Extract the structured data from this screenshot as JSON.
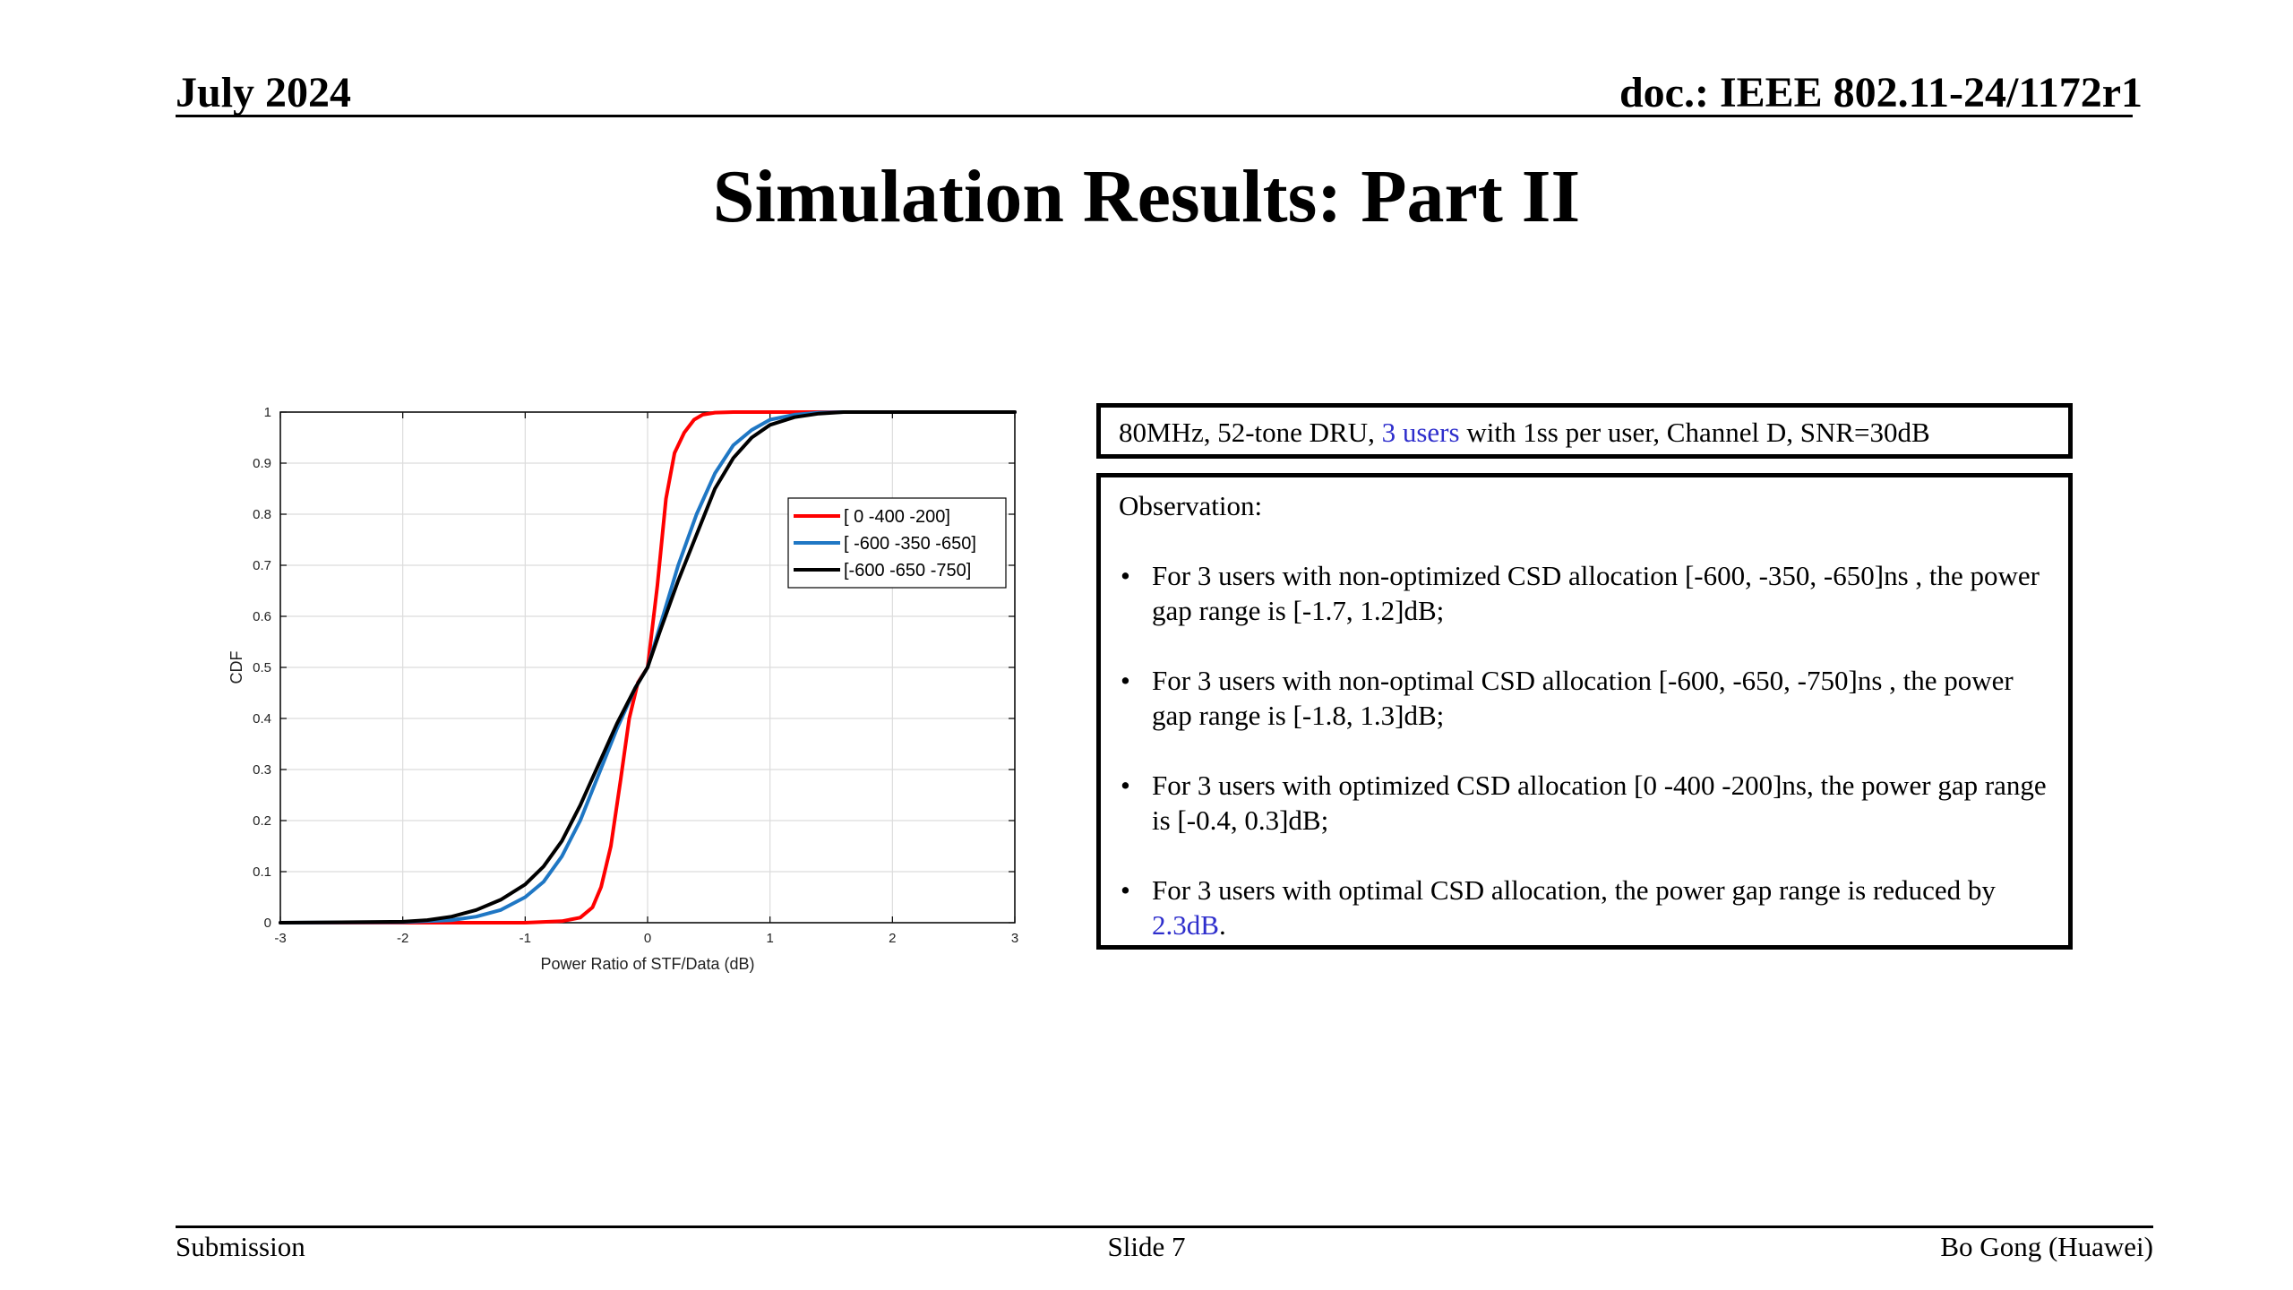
{
  "header": {
    "date": "July 2024",
    "doc": "doc.: IEEE 802.11-24/1172r1"
  },
  "slide_title": "Simulation Results: Part II",
  "config": {
    "prefix": "80MHz, 52-tone DRU, ",
    "highlight": "3 users",
    "suffix": " with 1ss per user, Channel D, SNR=30dB",
    "highlight_color": "#2e2ecc"
  },
  "observation": {
    "title": "Observation:",
    "bullet": "•",
    "items": [
      {
        "text": "For 3 users with non-optimized CSD allocation [-600, -350, -650]ns , the power gap range is [-1.7, 1.2]dB;"
      },
      {
        "text": "For 3 users with non-optimal CSD allocation [-600, -650, -750]ns , the power gap range is [-1.8, 1.3]dB;"
      },
      {
        "text": "For 3 users with optimized CSD allocation [0 -400 -200]ns, the power gap range is [-0.4, 0.3]dB;"
      },
      {
        "text": "For 3 users with optimal CSD allocation, the power gap range is reduced by ",
        "highlight": "2.3dB",
        "after": "."
      }
    ]
  },
  "footer": {
    "left": "Submission",
    "center": "Slide 7",
    "right": "Bo Gong (Huawei)"
  },
  "chart_data": {
    "type": "line",
    "xlabel": "Power Ratio of STF/Data (dB)",
    "ylabel": "CDF",
    "xlim": [
      -3,
      3
    ],
    "ylim": [
      0,
      1
    ],
    "xticks": [
      "-3",
      "-2",
      "-1",
      "0",
      "1",
      "2",
      "3"
    ],
    "yticks": [
      "0",
      "0.1",
      "0.2",
      "0.3",
      "0.4",
      "0.5",
      "0.6",
      "0.7",
      "0.8",
      "0.9",
      "1"
    ],
    "grid": true,
    "legend_position": "top-right",
    "series": [
      {
        "name": "[ 0 -400 -200]",
        "color": "#ff0000",
        "x": [
          -3.0,
          -1.0,
          -0.7,
          -0.55,
          -0.45,
          -0.38,
          -0.3,
          -0.22,
          -0.15,
          -0.08,
          0.0,
          0.08,
          0.15,
          0.22,
          0.3,
          0.38,
          0.45,
          0.55,
          0.7,
          1.0,
          3.0
        ],
        "y": [
          0.0,
          0.0,
          0.003,
          0.01,
          0.03,
          0.07,
          0.15,
          0.28,
          0.4,
          0.47,
          0.5,
          0.66,
          0.83,
          0.92,
          0.96,
          0.985,
          0.995,
          0.999,
          1.0,
          1.0,
          1.0
        ]
      },
      {
        "name": "[ -600 -350 -650]",
        "color": "#1f77c4",
        "x": [
          -3.0,
          -2.0,
          -1.6,
          -1.4,
          -1.2,
          -1.0,
          -0.85,
          -0.7,
          -0.55,
          -0.4,
          -0.25,
          -0.1,
          0.0,
          0.1,
          0.25,
          0.4,
          0.55,
          0.7,
          0.85,
          1.0,
          1.2,
          1.4,
          1.6,
          3.0
        ],
        "y": [
          0.0,
          0.001,
          0.005,
          0.012,
          0.025,
          0.05,
          0.08,
          0.13,
          0.2,
          0.29,
          0.38,
          0.46,
          0.5,
          0.58,
          0.7,
          0.8,
          0.88,
          0.935,
          0.965,
          0.985,
          0.995,
          0.999,
          1.0,
          1.0
        ]
      },
      {
        "name": "[-600 -650 -750]",
        "color": "#000000",
        "x": [
          -3.0,
          -2.0,
          -1.8,
          -1.6,
          -1.4,
          -1.2,
          -1.0,
          -0.85,
          -0.7,
          -0.55,
          -0.4,
          -0.25,
          -0.1,
          0.0,
          0.1,
          0.25,
          0.4,
          0.55,
          0.7,
          0.85,
          1.0,
          1.2,
          1.4,
          1.6,
          3.0
        ],
        "y": [
          0.0,
          0.002,
          0.005,
          0.012,
          0.025,
          0.045,
          0.075,
          0.11,
          0.16,
          0.23,
          0.31,
          0.39,
          0.46,
          0.5,
          0.57,
          0.67,
          0.76,
          0.85,
          0.91,
          0.95,
          0.975,
          0.99,
          0.997,
          1.0,
          1.0
        ]
      }
    ]
  }
}
